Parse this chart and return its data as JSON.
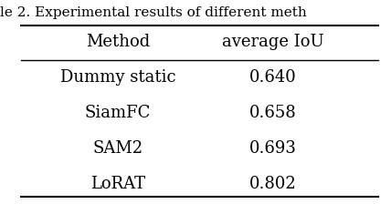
{
  "title": "le 2. Experimental results of different meth",
  "columns": [
    "Method",
    "average IoU"
  ],
  "rows": [
    [
      "Dummy static",
      "0.640"
    ],
    [
      "SiamFC",
      "0.658"
    ],
    [
      "SAM2",
      "0.693"
    ],
    [
      "LoRAT",
      "0.802"
    ]
  ],
  "background_color": "#ffffff",
  "text_color": "#000000",
  "font_size": 13,
  "header_font_size": 13
}
